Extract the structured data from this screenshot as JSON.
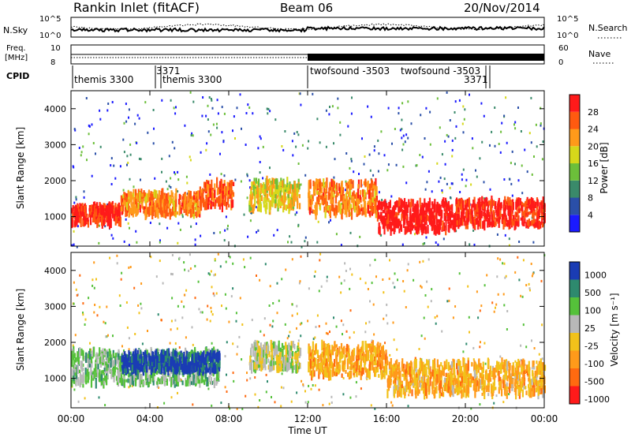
{
  "header": {
    "station": "Rankin Inlet (fitACF)",
    "beam": "Beam 06",
    "date": "20/Nov/2014"
  },
  "noise_panel": {
    "left_label": "N.Sky",
    "right_label": "N.Search",
    "left_ticks": [
      "10^5",
      "10^0"
    ],
    "right_ticks": [
      "10^5",
      "10^0"
    ]
  },
  "freq_panel": {
    "left_label_line1": "Freq.",
    "left_label_line2": "[MHz]",
    "right_label": "Nave",
    "left_ticks": [
      "8",
      "10"
    ],
    "right_ticks": [
      "60",
      "0"
    ],
    "left_range": [
      8,
      10
    ],
    "right_range": [
      0,
      60
    ]
  },
  "cpid": {
    "label": "CPID",
    "entries": [
      {
        "text": "themis 3300"
      },
      {
        "text": "3371"
      },
      {
        "text": "themis 3300"
      },
      {
        "text": "twofsound -3503"
      },
      {
        "text": "twofsound -3503"
      },
      {
        "text": "3371"
      }
    ]
  },
  "axes": {
    "ylabel": "Slant Range [km]",
    "xlabel": "Time UT",
    "x_ticks": [
      "00:00",
      "04:00",
      "08:00",
      "12:00",
      "16:00",
      "20:00",
      "00:00"
    ],
    "y_ticks": [
      "1000",
      "2000",
      "3000",
      "4000"
    ]
  },
  "power_bar": {
    "label": "Power [dB]",
    "ticks": [
      "4",
      "8",
      "12",
      "16",
      "20",
      "24",
      "28"
    ],
    "colors": [
      "#1a1aff",
      "#2a4fa8",
      "#3a8a6a",
      "#6cbf3a",
      "#d6d81a",
      "#ff9a1a",
      "#ff5a10",
      "#ff1a1a"
    ]
  },
  "velocity_bar": {
    "label": "Velocity [m s⁻¹]",
    "ticks": [
      "1000",
      "500",
      "100",
      "25",
      "-25",
      "-100",
      "-500",
      "-1000"
    ],
    "colors": [
      "#1a3cb4",
      "#2e8a6e",
      "#55c13a",
      "#b8b8b8",
      "#f2c21a",
      "#ff9a1a",
      "#ff6a10",
      "#ff1a1a"
    ]
  },
  "chart_data": [
    {
      "type": "heatmap",
      "title": "Power",
      "xlabel": "Time UT",
      "ylabel": "Slant Range [km]",
      "xlim": [
        0,
        24
      ],
      "ylim": [
        180,
        4500
      ],
      "colorbar_label": "Power [dB]",
      "colorbar_range": [
        4,
        28
      ],
      "bands": [
        {
          "t_start": 0.0,
          "t_end": 2.5,
          "range_center": 1050,
          "range_halfwidth": 250,
          "value": 26
        },
        {
          "t_start": 2.5,
          "t_end": 6.5,
          "range_center": 1350,
          "range_halfwidth": 300,
          "value": 22
        },
        {
          "t_start": 6.5,
          "t_end": 8.2,
          "range_center": 1600,
          "range_halfwidth": 350,
          "value": 24
        },
        {
          "t_start": 9.0,
          "t_end": 11.6,
          "range_center": 1600,
          "range_halfwidth": 400,
          "value": 18
        },
        {
          "t_start": 12.0,
          "t_end": 15.5,
          "range_center": 1500,
          "range_halfwidth": 450,
          "value": 22
        },
        {
          "t_start": 15.5,
          "t_end": 19.5,
          "range_center": 1000,
          "range_halfwidth": 400,
          "value": 28
        },
        {
          "t_start": 19.5,
          "t_end": 24.0,
          "range_center": 1100,
          "range_halfwidth": 350,
          "value": 26
        }
      ]
    },
    {
      "type": "heatmap",
      "title": "Velocity",
      "xlabel": "Time UT",
      "ylabel": "Slant Range [km]",
      "xlim": [
        0,
        24
      ],
      "ylim": [
        180,
        4500
      ],
      "colorbar_label": "Velocity [m s⁻¹]",
      "colorbar_range": [
        -1000,
        1000
      ],
      "bands": [
        {
          "t_start": 0.0,
          "t_end": 7.5,
          "range_center": 1300,
          "range_halfwidth": 450,
          "value": 300
        },
        {
          "t_start": 2.5,
          "t_end": 7.5,
          "range_center": 1450,
          "range_halfwidth": 250,
          "value": 900
        },
        {
          "t_start": 9.0,
          "t_end": 11.6,
          "range_center": 1600,
          "range_halfwidth": 350,
          "value": 150
        },
        {
          "t_start": 12.0,
          "t_end": 16.0,
          "range_center": 1500,
          "range_halfwidth": 450,
          "value": -300
        },
        {
          "t_start": 16.0,
          "t_end": 24.0,
          "range_center": 1000,
          "range_halfwidth": 450,
          "value": -250
        }
      ]
    }
  ]
}
